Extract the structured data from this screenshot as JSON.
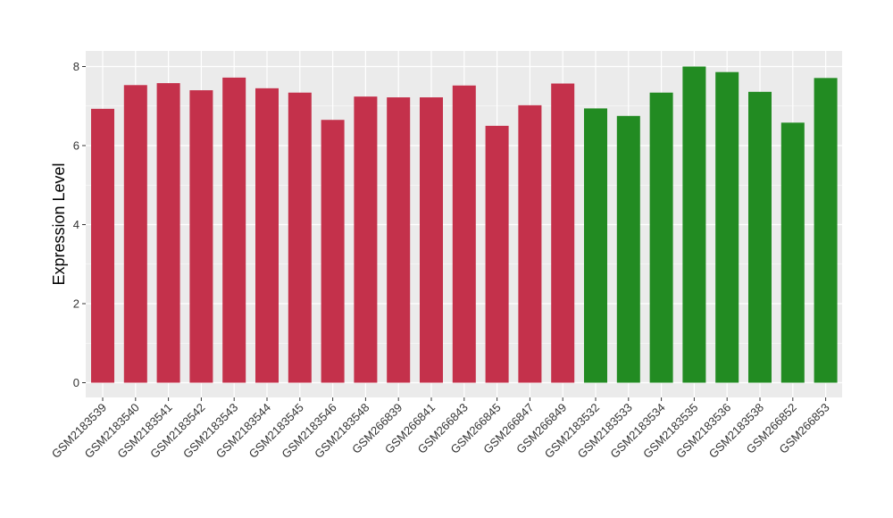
{
  "chart_data": {
    "type": "bar",
    "title": "",
    "xlabel": "",
    "ylabel": "Expression Level",
    "ylim": [
      0,
      8.0
    ],
    "yticks": [
      0,
      2,
      4,
      6,
      8
    ],
    "grid": true,
    "legend": "none",
    "categories": [
      "GSM2183539",
      "GSM2183540",
      "GSM2183541",
      "GSM2183542",
      "GSM2183543",
      "GSM2183544",
      "GSM2183545",
      "GSM2183546",
      "GSM2183548",
      "GSM266839",
      "GSM266841",
      "GSM266843",
      "GSM266845",
      "GSM266847",
      "GSM266849",
      "GSM2183532",
      "GSM2183533",
      "GSM2183534",
      "GSM2183535",
      "GSM2183536",
      "GSM2183538",
      "GSM266852",
      "GSM266853"
    ],
    "values": [
      6.93,
      7.53,
      7.58,
      7.4,
      7.72,
      7.45,
      7.34,
      6.65,
      7.24,
      7.22,
      7.22,
      7.52,
      6.5,
      7.02,
      7.57,
      6.94,
      6.75,
      7.34,
      8.0,
      7.86,
      7.36,
      6.58,
      7.71
    ],
    "bar_colors": [
      "#c4314b",
      "#c4314b",
      "#c4314b",
      "#c4314b",
      "#c4314b",
      "#c4314b",
      "#c4314b",
      "#c4314b",
      "#c4314b",
      "#c4314b",
      "#c4314b",
      "#c4314b",
      "#c4314b",
      "#c4314b",
      "#c4314b",
      "#228b22",
      "#228b22",
      "#228b22",
      "#228b22",
      "#228b22",
      "#228b22",
      "#228b22",
      "#228b22"
    ],
    "panel_background": "#ebebeb",
    "grid_color": "#ffffff"
  }
}
